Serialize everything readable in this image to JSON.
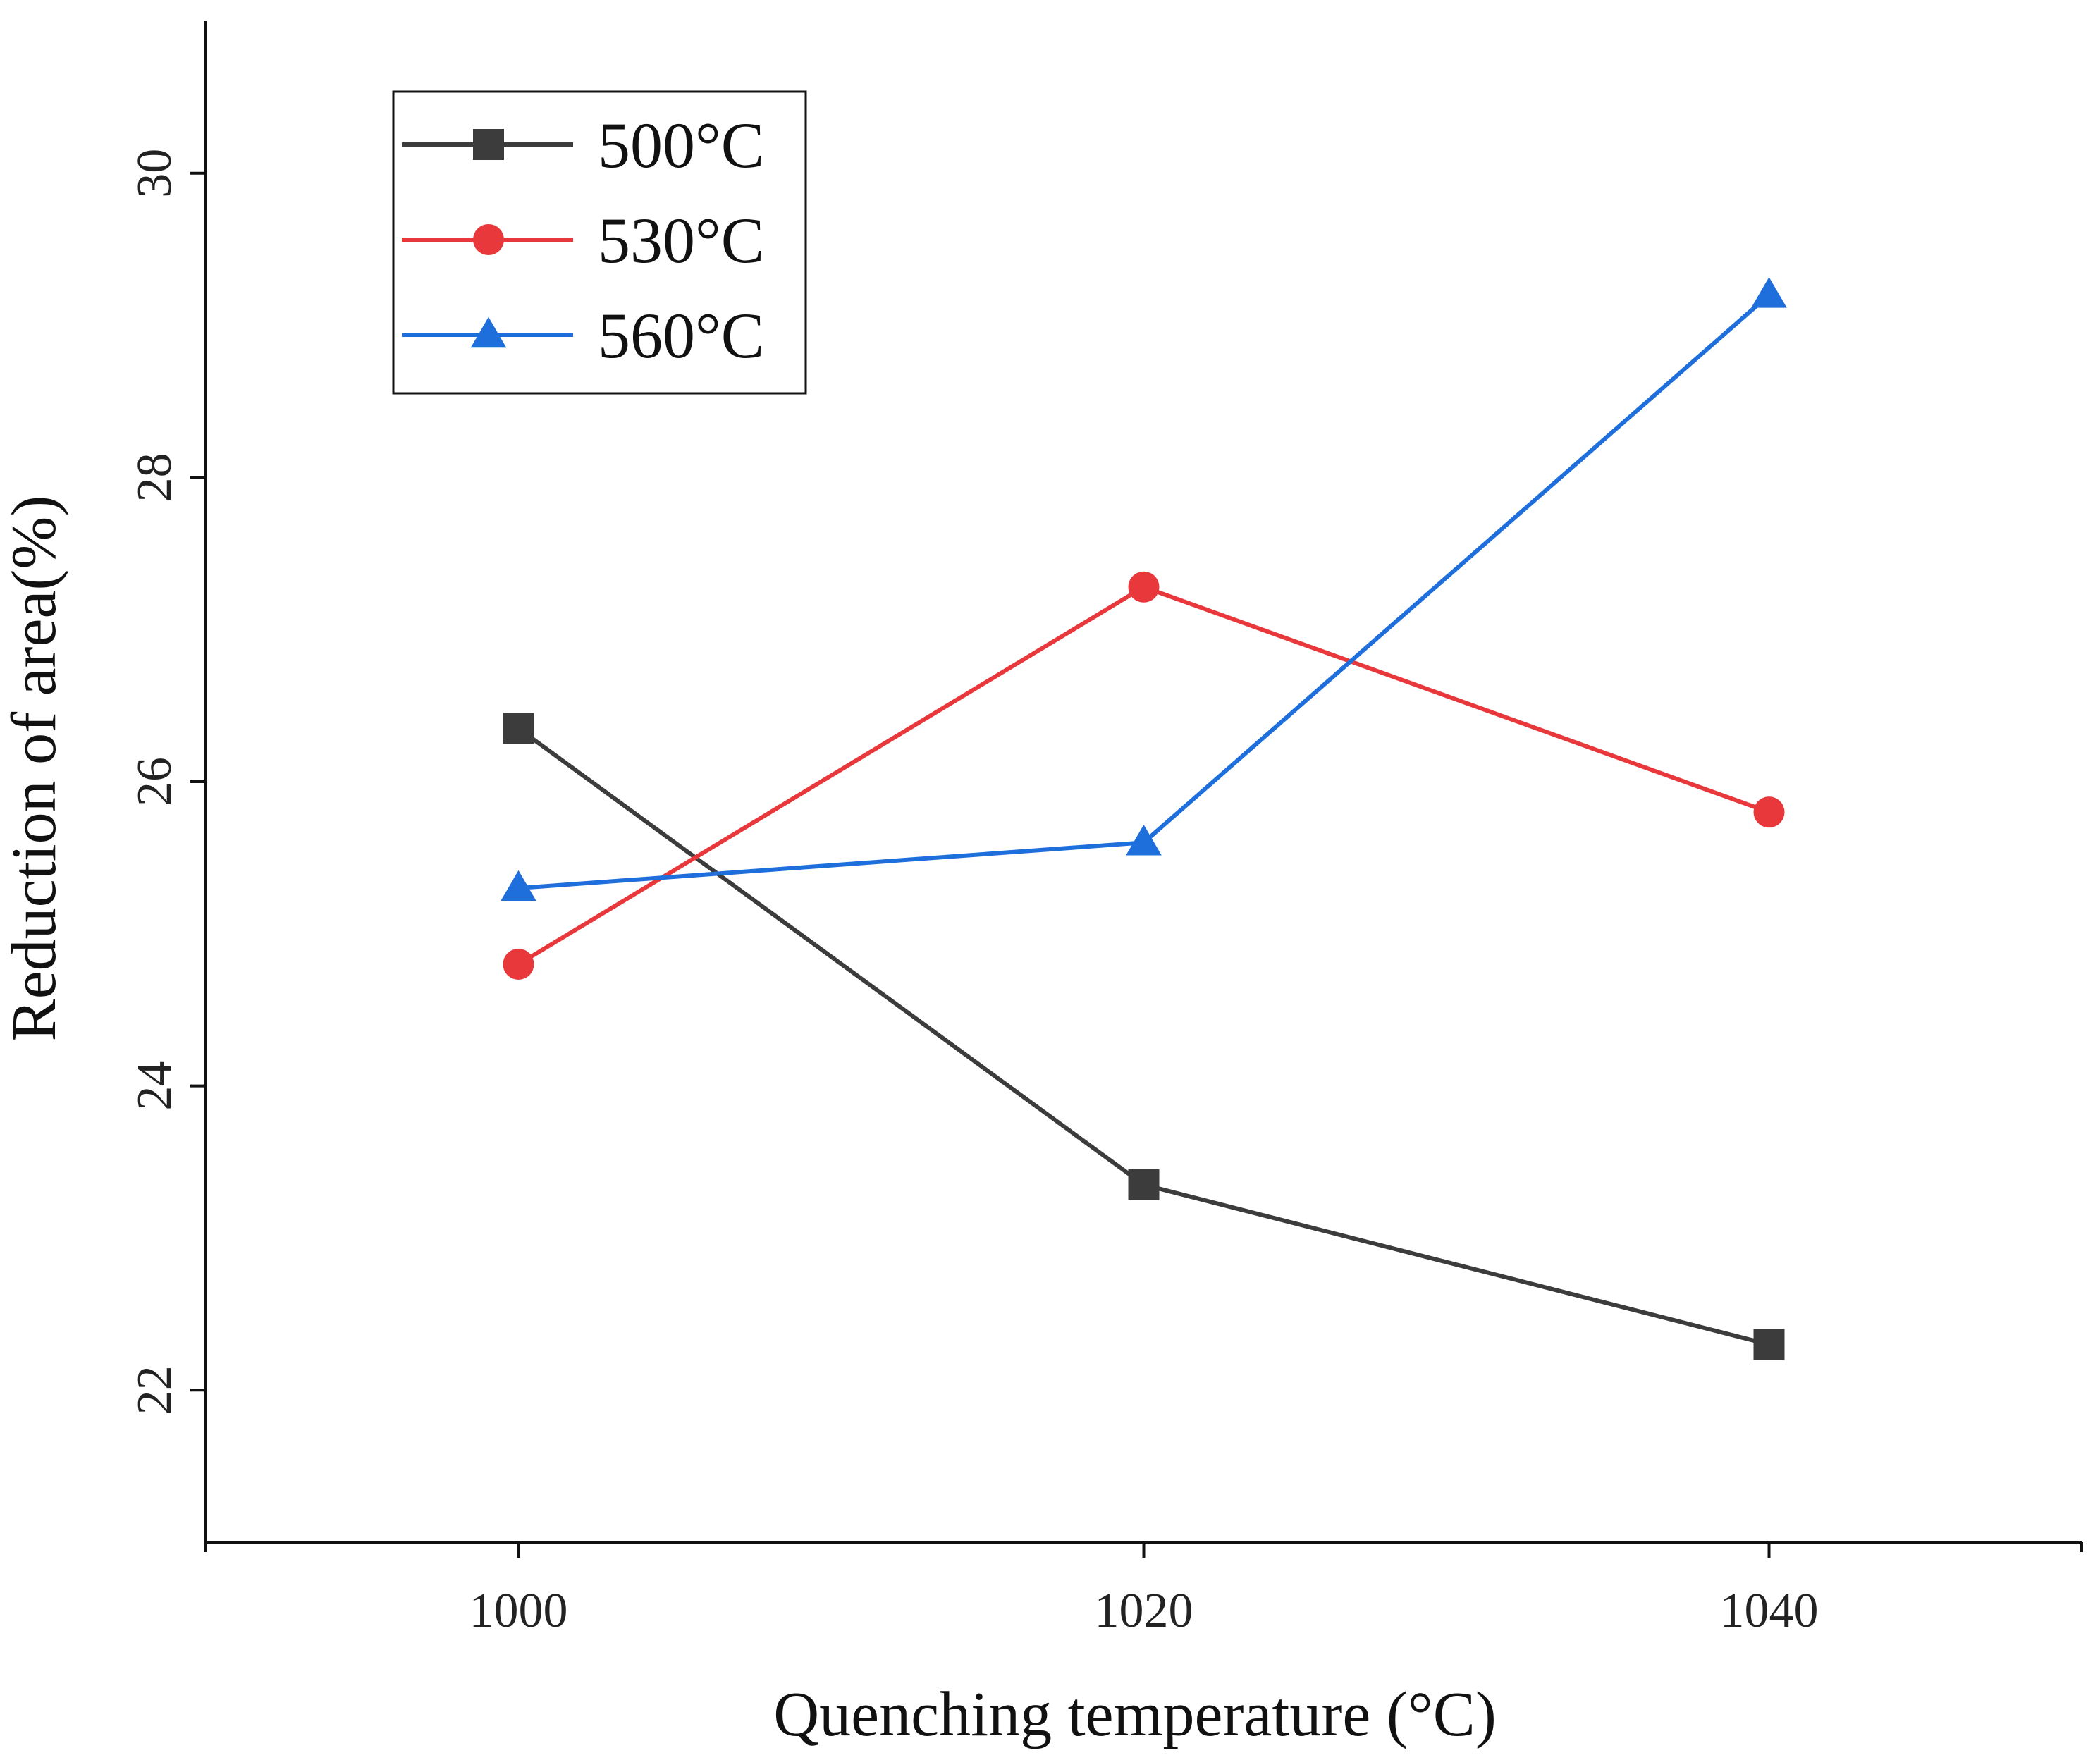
{
  "chart_data": {
    "type": "line",
    "title": "",
    "xlabel": "Quenching temperature (°C)",
    "ylabel": "Reduction of area(%)",
    "x": [
      1000,
      1020,
      1040
    ],
    "xlim": [
      990,
      1050
    ],
    "ylim": [
      21,
      31
    ],
    "xticks": [
      "1000",
      "1020",
      "1040"
    ],
    "yticks": [
      "22",
      "24",
      "26",
      "28",
      "30"
    ],
    "grid": false,
    "legend_position": "top-left",
    "series": [
      {
        "name": "500°C",
        "marker": "square",
        "color": "#3c3c3c",
        "values": [
          26.35,
          23.35,
          22.3
        ]
      },
      {
        "name": "530°C",
        "marker": "circle",
        "color": "#e8383b",
        "values": [
          24.8,
          27.28,
          25.8
        ]
      },
      {
        "name": "560°C",
        "marker": "triangle",
        "color": "#1e6fdc",
        "values": [
          25.3,
          25.6,
          29.2
        ]
      }
    ]
  }
}
